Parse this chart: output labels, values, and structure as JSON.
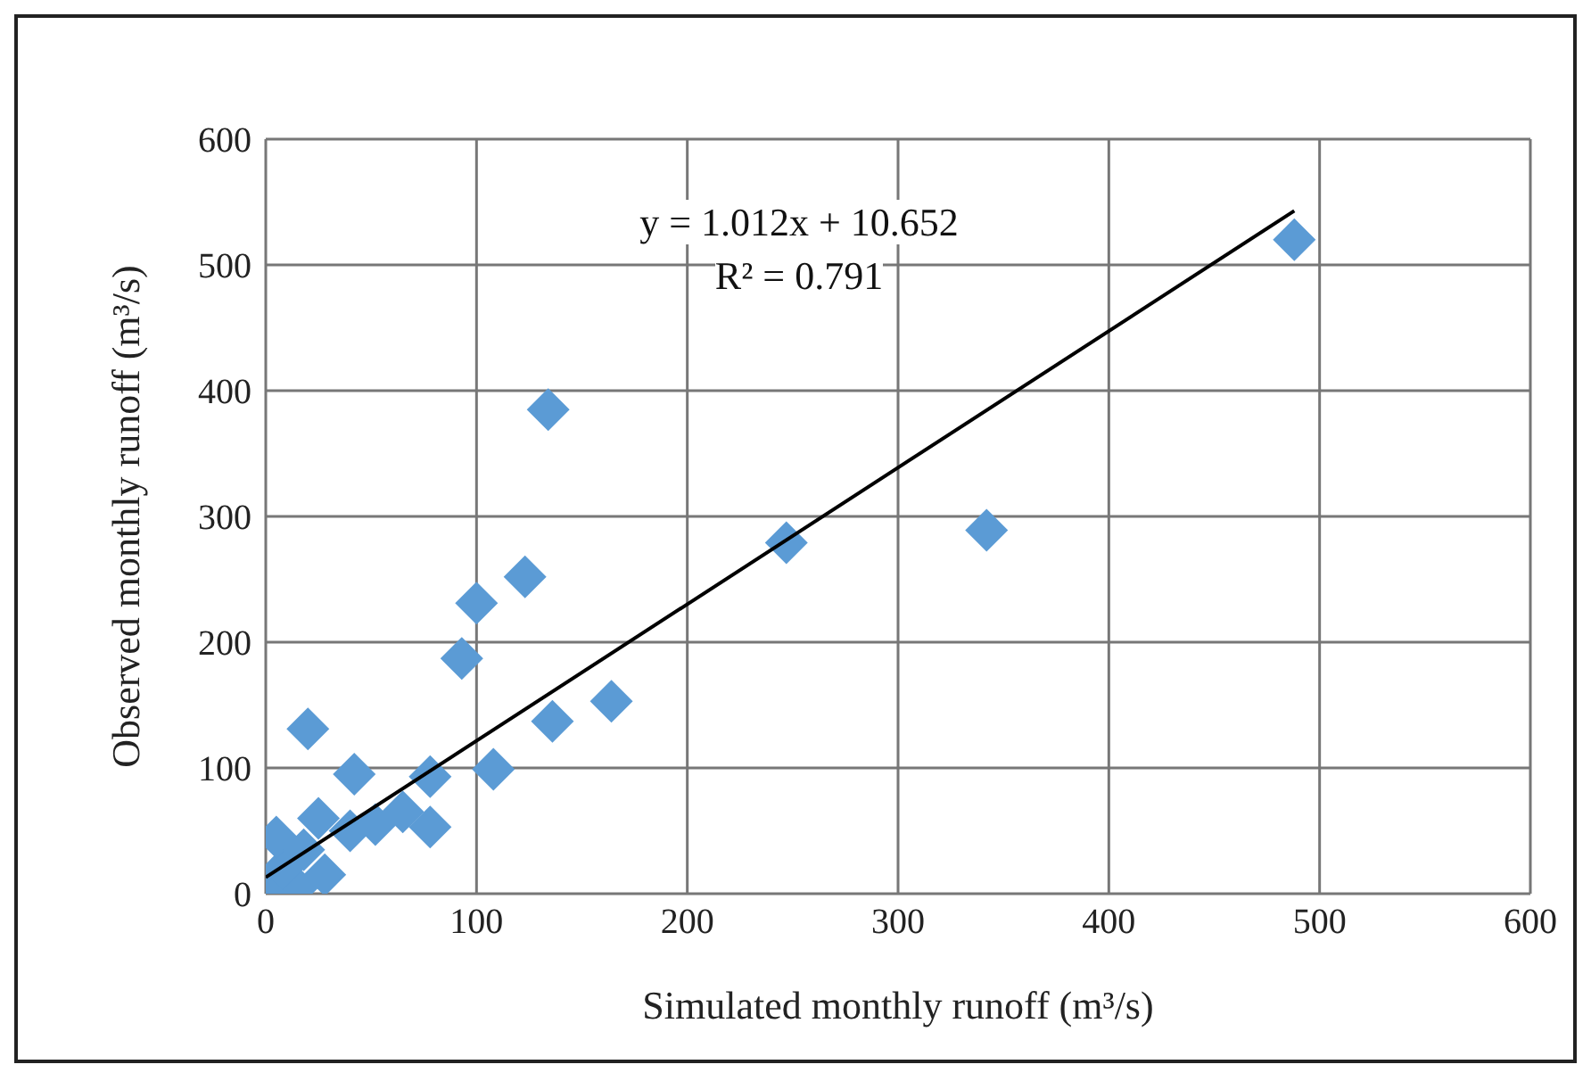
{
  "chart_data": {
    "type": "scatter",
    "xlabel": "Simulated monthly runoff (m³/s)",
    "ylabel": "Observed monthly runoff  (m³/s)",
    "xlim": [
      0,
      600
    ],
    "xticks": [
      0,
      100,
      200,
      300,
      400,
      500,
      600
    ],
    "ylim": [
      0,
      600
    ],
    "yticks": [
      0,
      100,
      200,
      300,
      400,
      500,
      600
    ],
    "grid": true,
    "marker": "diamond",
    "legend": false,
    "annotations": [
      "y = 1.012x + 10.652",
      "R² = 0.791"
    ],
    "series": [
      {
        "color": "#5b9bd5",
        "x": [
          488,
          134,
          247,
          342,
          100,
          123,
          93,
          136,
          164,
          20,
          108,
          42,
          78,
          78,
          2,
          15,
          8,
          5,
          18,
          25,
          28,
          40,
          52,
          65
        ],
        "values": [
          520,
          385,
          279,
          289,
          231,
          252,
          187,
          137,
          153,
          131,
          99,
          95,
          93,
          53,
          2,
          5,
          20,
          45,
          35,
          60,
          15,
          50,
          55,
          65
        ]
      },
      {
        "type": "line",
        "color": "#000000",
        "marker": "none",
        "x": [
          0,
          488
        ],
        "values": [
          13,
          543
        ]
      }
    ]
  }
}
